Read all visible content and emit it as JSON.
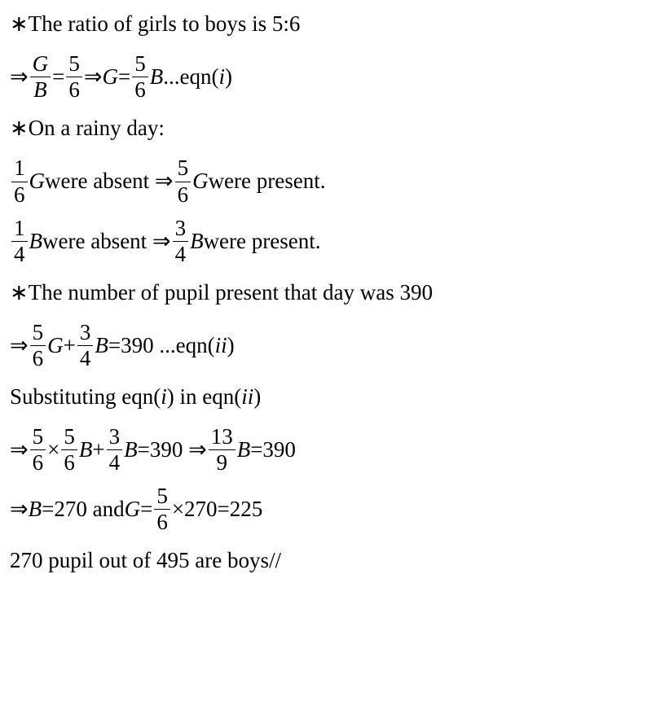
{
  "line1": {
    "prefix": "∗",
    "text": "The ratio of girls to boys is 5:6"
  },
  "line2": {
    "arrow": "⇒ ",
    "f1n": "G",
    "f1d": "B",
    "eq1": "=",
    "f2n": "5",
    "f2d": "6",
    "arrow2": " ⇒",
    "gvar": "G",
    "eq2": "=",
    "f3n": "5",
    "f3d": "6",
    "bvar": "B",
    "suffix": " ...eqn(",
    "ivar": "i",
    "suffix2": ")"
  },
  "line3": {
    "prefix": "∗",
    "text": "On a rainy day:"
  },
  "line4": {
    "space": " ",
    "f1n": "1",
    "f1d": "6",
    "gvar": "G",
    "text1": " were absent ⇒",
    "f2n": "5",
    "f2d": "6",
    "gvar2": "G",
    "text2": " were present."
  },
  "line5": {
    "f1n": "1",
    "f1d": "4",
    "bvar": "B",
    "text1": " were absent ⇒",
    "f2n": "3",
    "f2d": "4",
    "bvar2": "B",
    "text2": " were present."
  },
  "line6": {
    "prefix": "∗ ",
    "text": "The number of pupil present that day was 390"
  },
  "line7": {
    "arrow": "⇒",
    "f1n": "5",
    "f1d": "6",
    "gvar": "G",
    "plus": "+",
    "f2n": "3",
    "f2d": "4",
    "bvar": "B",
    "eq": "=390 ...eqn(",
    "ivar": "ii",
    "suffix": ")"
  },
  "line8": {
    "text1": "Substituting eqn(",
    "ivar1": "i",
    "text2": ") in eqn(",
    "ivar2": "ii",
    "text3": ")"
  },
  "line9": {
    "arrow": "⇒",
    "f1n": "5",
    "f1d": "6",
    "times": "×",
    "f2n": "5",
    "f2d": "6",
    "bvar": "B",
    "plus": "+",
    "f3n": "3",
    "f3d": "4",
    "bvar2": "B",
    "eq": "=390 ⇒",
    "f4n": "13",
    "f4d": "9",
    "bvar3": "B",
    "eq2": "=390"
  },
  "line10": {
    "arrow": "⇒",
    "bvar": "B",
    "text1": "=270 and ",
    "gvar": "G",
    "eq": "=",
    "f1n": "5",
    "f1d": "6",
    "text2": "×270=225"
  },
  "line11": {
    "text": "270 pupil out of 495 are boys//"
  }
}
